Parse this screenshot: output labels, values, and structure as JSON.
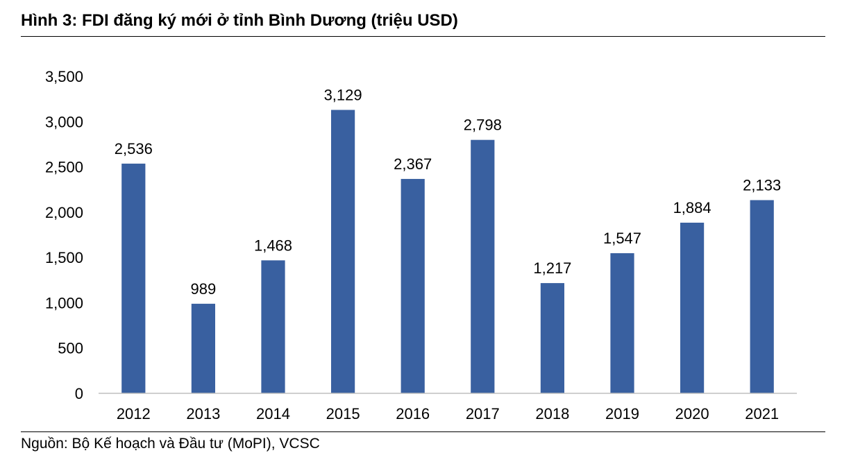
{
  "figure": {
    "title": "Hình 3: FDI đăng ký mới ở tỉnh Bình Dương (triệu USD)",
    "source": "Nguồn: Bộ Kế hoạch và Đầu tư (MoPI), VCSC"
  },
  "chart_data": {
    "type": "bar",
    "title": "Hình 3: FDI đăng ký mới ở tỉnh Bình Dương (triệu USD)",
    "xlabel": "",
    "ylabel": "",
    "categories": [
      "2012",
      "2013",
      "2014",
      "2015",
      "2016",
      "2017",
      "2018",
      "2019",
      "2020",
      "2021"
    ],
    "values": [
      2536,
      989,
      1468,
      3129,
      2367,
      2798,
      1217,
      1547,
      1884,
      2133
    ],
    "value_labels": [
      "2,536",
      "989",
      "1,468",
      "3,129",
      "2,367",
      "2,798",
      "1,217",
      "1,547",
      "1,884",
      "2,133"
    ],
    "ylim": [
      0,
      3500
    ],
    "yticks": [
      0,
      500,
      1000,
      1500,
      2000,
      2500,
      3000,
      3500
    ],
    "ytick_labels": [
      "0",
      "500",
      "1,000",
      "1,500",
      "2,000",
      "2,500",
      "3,000",
      "3,500"
    ],
    "grid": false,
    "legend": "none",
    "bar_color": "#3960A0"
  }
}
